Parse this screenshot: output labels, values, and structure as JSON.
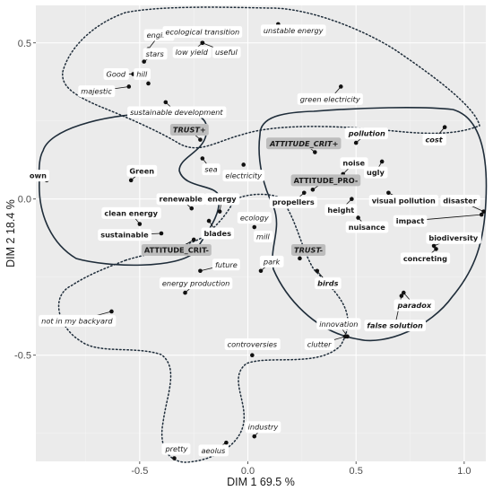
{
  "chart_data": {
    "type": "scatter",
    "xlabel": "DIM 1   69.5 %",
    "ylabel": "DIM 2   18.4 %",
    "xlim": [
      -0.98,
      1.1
    ],
    "ylim": [
      -0.84,
      0.62
    ],
    "x_ticks": [
      -0.5,
      0.0,
      0.5,
      1.0
    ],
    "x_tick_labels": [
      "-0.5",
      "0.0",
      "0.5",
      "1.0"
    ],
    "y_ticks": [
      -0.5,
      0.0,
      0.5
    ],
    "y_tick_labels": [
      "-0.5",
      "0.0",
      "0.5"
    ],
    "grid": true,
    "points": [
      {
        "label": "engine",
        "x": -0.46,
        "y": 0.48,
        "lx": -0.41,
        "ly": 0.525,
        "style": "italic"
      },
      {
        "label": "stars",
        "x": -0.48,
        "y": 0.44,
        "lx": -0.43,
        "ly": 0.465,
        "style": "italic"
      },
      {
        "label": "Good",
        "x": -0.53,
        "y": 0.4,
        "lx": -0.61,
        "ly": 0.4,
        "style": "italic"
      },
      {
        "label": "hill",
        "x": -0.46,
        "y": 0.37,
        "lx": -0.49,
        "ly": 0.4,
        "style": "italic"
      },
      {
        "label": "majestic",
        "x": -0.55,
        "y": 0.36,
        "lx": -0.7,
        "ly": 0.345,
        "style": "italic"
      },
      {
        "label": "ecological transition",
        "x": -0.21,
        "y": 0.5,
        "lx": -0.21,
        "ly": 0.535,
        "style": "italic"
      },
      {
        "label": "low yield",
        "x": -0.21,
        "y": 0.5,
        "lx": -0.26,
        "ly": 0.47,
        "style": "italic"
      },
      {
        "label": "useful",
        "x": -0.21,
        "y": 0.5,
        "lx": -0.1,
        "ly": 0.47,
        "style": "italic"
      },
      {
        "label": "unstable energy",
        "x": 0.14,
        "y": 0.56,
        "lx": 0.21,
        "ly": 0.54,
        "style": "italic"
      },
      {
        "label": "green electricity",
        "x": 0.43,
        "y": 0.36,
        "lx": 0.38,
        "ly": 0.32,
        "style": "italic"
      },
      {
        "label": "sustainable development",
        "x": -0.38,
        "y": 0.31,
        "lx": -0.33,
        "ly": 0.278,
        "style": "italic"
      },
      {
        "label": "TRUST+",
        "x": -0.22,
        "y": 0.19,
        "lx": -0.27,
        "ly": 0.222,
        "style": "bold-italic",
        "boxed": true
      },
      {
        "label": "sea",
        "x": -0.21,
        "y": 0.13,
        "lx": -0.17,
        "ly": 0.095,
        "style": "italic"
      },
      {
        "label": "electricity",
        "x": -0.02,
        "y": 0.11,
        "lx": -0.02,
        "ly": 0.075,
        "style": "italic"
      },
      {
        "label": "ATTITUDE_CRIT+",
        "x": 0.31,
        "y": 0.15,
        "lx": 0.26,
        "ly": 0.178,
        "style": "bold-italic",
        "boxed": true
      },
      {
        "label": "pollution",
        "x": 0.5,
        "y": 0.18,
        "lx": 0.55,
        "ly": 0.21,
        "style": "bold-italic"
      },
      {
        "label": "cost",
        "x": 0.91,
        "y": 0.23,
        "lx": 0.86,
        "ly": 0.19,
        "style": "bold-italic"
      },
      {
        "label": "Green",
        "x": -0.54,
        "y": 0.06,
        "lx": -0.49,
        "ly": 0.09,
        "style": "bold"
      },
      {
        "label": "own",
        "x": -0.93,
        "y": 0.06,
        "lx": -0.97,
        "ly": 0.075,
        "style": "bold"
      },
      {
        "label": "noise",
        "x": 0.44,
        "y": 0.08,
        "lx": 0.49,
        "ly": 0.115,
        "style": "bold"
      },
      {
        "label": "ugly",
        "x": 0.62,
        "y": 0.12,
        "lx": 0.59,
        "ly": 0.085,
        "style": "bold"
      },
      {
        "label": "ATTITUDE_PRO-",
        "x": 0.3,
        "y": 0.03,
        "lx": 0.36,
        "ly": 0.06,
        "style": "bold",
        "boxed": true
      },
      {
        "label": "propellers",
        "x": 0.26,
        "y": 0.02,
        "lx": 0.21,
        "ly": -0.01,
        "style": "bold"
      },
      {
        "label": "height",
        "x": 0.48,
        "y": 0.0,
        "lx": 0.43,
        "ly": -0.035,
        "style": "bold"
      },
      {
        "label": "visual pollution",
        "x": 0.65,
        "y": 0.02,
        "lx": 0.72,
        "ly": -0.005,
        "style": "bold"
      },
      {
        "label": "disaster",
        "x": 1.09,
        "y": -0.04,
        "lx": 0.98,
        "ly": -0.005,
        "style": "bold"
      },
      {
        "label": "renewable",
        "x": -0.26,
        "y": -0.03,
        "lx": -0.31,
        "ly": 0.0,
        "style": "bold"
      },
      {
        "label": "energy",
        "x": -0.13,
        "y": -0.04,
        "lx": -0.12,
        "ly": 0.0,
        "style": "bold"
      },
      {
        "label": "clean energy",
        "x": -0.5,
        "y": -0.08,
        "lx": -0.54,
        "ly": -0.045,
        "style": "bold"
      },
      {
        "label": "sustainable",
        "x": -0.4,
        "y": -0.11,
        "lx": -0.57,
        "ly": -0.115,
        "style": "bold"
      },
      {
        "label": "blades",
        "x": -0.18,
        "y": -0.07,
        "lx": -0.14,
        "ly": -0.11,
        "style": "bold"
      },
      {
        "label": "ATTITUDE_CRIT-",
        "x": -0.25,
        "y": -0.13,
        "lx": -0.33,
        "ly": -0.163,
        "style": "bold",
        "boxed": true
      },
      {
        "label": "nuisance",
        "x": 0.51,
        "y": -0.06,
        "lx": 0.55,
        "ly": -0.09,
        "style": "bold"
      },
      {
        "label": "impact",
        "x": 1.08,
        "y": -0.05,
        "lx": 0.75,
        "ly": -0.07,
        "style": "bold"
      },
      {
        "label": "biodiversity",
        "x": 0.86,
        "y": -0.15,
        "lx": 0.95,
        "ly": -0.125,
        "style": "bold"
      },
      {
        "label": "concreting",
        "x": 0.87,
        "y": -0.16,
        "lx": 0.82,
        "ly": -0.19,
        "style": "bold"
      },
      {
        "label": "ecology",
        "x": 0.03,
        "y": -0.09,
        "lx": 0.03,
        "ly": -0.06,
        "style": "italic"
      },
      {
        "label": "mill",
        "x": 0.09,
        "y": -0.12,
        "lx": 0.07,
        "ly": -0.12,
        "style": "italic"
      },
      {
        "label": "park",
        "x": 0.06,
        "y": -0.23,
        "lx": 0.11,
        "ly": -0.2,
        "style": "italic"
      },
      {
        "label": "TRUST-",
        "x": 0.24,
        "y": -0.19,
        "lx": 0.28,
        "ly": -0.163,
        "style": "bold-italic",
        "boxed": true
      },
      {
        "label": "birds",
        "x": 0.32,
        "y": -0.23,
        "lx": 0.37,
        "ly": -0.27,
        "style": "bold-italic"
      },
      {
        "label": "future",
        "x": -0.22,
        "y": -0.23,
        "lx": -0.1,
        "ly": -0.21,
        "style": "italic"
      },
      {
        "label": "energy production",
        "x": -0.29,
        "y": -0.3,
        "lx": -0.24,
        "ly": -0.27,
        "style": "italic"
      },
      {
        "label": "paradox",
        "x": 0.72,
        "y": -0.3,
        "lx": 0.77,
        "ly": -0.34,
        "style": "bold-italic"
      },
      {
        "label": "false solution",
        "x": 0.71,
        "y": -0.31,
        "lx": 0.68,
        "ly": -0.405,
        "style": "bold-italic"
      },
      {
        "label": "not in my backyard",
        "x": -0.63,
        "y": -0.36,
        "lx": -0.79,
        "ly": -0.39,
        "style": "italic"
      },
      {
        "label": "innovation",
        "x": 0.46,
        "y": -0.44,
        "lx": 0.42,
        "ly": -0.4,
        "style": "italic"
      },
      {
        "label": "clutter",
        "x": 0.45,
        "y": -0.44,
        "lx": 0.33,
        "ly": -0.465,
        "style": "italic"
      },
      {
        "label": "controversies",
        "x": 0.02,
        "y": -0.5,
        "lx": 0.02,
        "ly": -0.465,
        "style": "italic"
      },
      {
        "label": "industry",
        "x": 0.03,
        "y": -0.76,
        "lx": 0.07,
        "ly": -0.73,
        "style": "italic"
      },
      {
        "label": "aeolus",
        "x": -0.1,
        "y": -0.78,
        "lx": -0.16,
        "ly": -0.805,
        "style": "italic"
      },
      {
        "label": "pretty",
        "x": -0.34,
        "y": -0.83,
        "lx": -0.33,
        "ly": -0.8,
        "style": "italic"
      }
    ]
  }
}
